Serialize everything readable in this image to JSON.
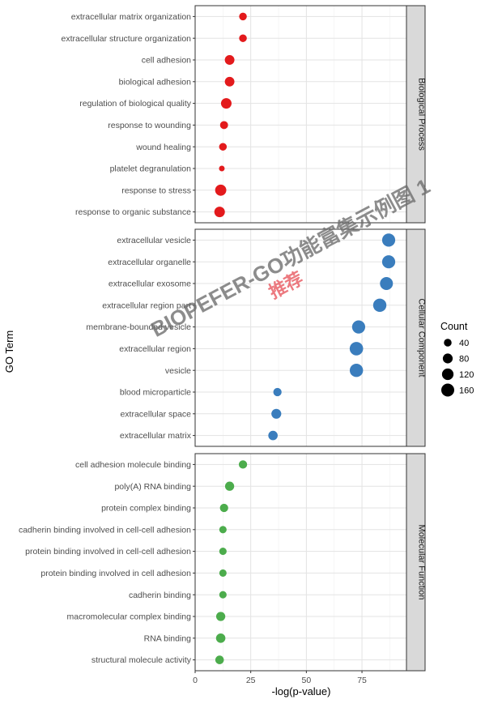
{
  "chart_data": {
    "type": "scatter",
    "xlabel": "-log(p-value)",
    "ylabel": "GO Term",
    "xlim": [
      0,
      95
    ],
    "xticks": [
      0,
      25,
      50,
      75
    ],
    "grid": true,
    "legend": {
      "title": "Count",
      "position": "right",
      "sizes": [
        40,
        80,
        120,
        160
      ]
    },
    "colors": {
      "Biological Process": "#e31a1c",
      "Cellular Component": "#3a7dbd",
      "Molecular Function": "#4cac4c"
    },
    "panels": [
      {
        "name": "Biological Process",
        "terms": [
          {
            "term": "extracellular matrix organization",
            "x": 21.5,
            "count": 40
          },
          {
            "term": "extracellular structure organization",
            "x": 21.5,
            "count": 40
          },
          {
            "term": "cell adhesion",
            "x": 15.5,
            "count": 75
          },
          {
            "term": "biological adhesion",
            "x": 15.5,
            "count": 75
          },
          {
            "term": "regulation of biological quality",
            "x": 14,
            "count": 95
          },
          {
            "term": "response to wounding",
            "x": 13,
            "count": 45
          },
          {
            "term": "wound healing",
            "x": 12.5,
            "count": 40
          },
          {
            "term": "platelet degranulation",
            "x": 12,
            "count": 15
          },
          {
            "term": "response to stress",
            "x": 11.5,
            "count": 110
          },
          {
            "term": "response to organic substance",
            "x": 11,
            "count": 95
          }
        ]
      },
      {
        "name": "Cellular Component",
        "terms": [
          {
            "term": "extracellular vesicle",
            "x": 87,
            "count": 165
          },
          {
            "term": "extracellular organelle",
            "x": 87,
            "count": 165
          },
          {
            "term": "extracellular exosome",
            "x": 86,
            "count": 160
          },
          {
            "term": "extracellular region part",
            "x": 83,
            "count": 170
          },
          {
            "term": "membrane-bounded vesicle",
            "x": 73.5,
            "count": 165
          },
          {
            "term": "extracellular region",
            "x": 72.5,
            "count": 175
          },
          {
            "term": "vesicle",
            "x": 72.5,
            "count": 170
          },
          {
            "term": "blood microparticle",
            "x": 37,
            "count": 50
          },
          {
            "term": "extracellular space",
            "x": 36.5,
            "count": 80
          },
          {
            "term": "extracellular matrix",
            "x": 35,
            "count": 70
          }
        ]
      },
      {
        "name": "Molecular Function",
        "terms": [
          {
            "term": "cell adhesion molecule binding",
            "x": 21.5,
            "count": 50
          },
          {
            "term": "poly(A) RNA binding",
            "x": 15.5,
            "count": 65
          },
          {
            "term": "protein complex binding",
            "x": 13,
            "count": 50
          },
          {
            "term": "cadherin binding involved in cell-cell adhesion",
            "x": 12.5,
            "count": 35
          },
          {
            "term": "protein binding involved in cell-cell adhesion",
            "x": 12.5,
            "count": 35
          },
          {
            "term": "protein binding involved in cell adhesion",
            "x": 12.5,
            "count": 35
          },
          {
            "term": "cadherin binding",
            "x": 12.5,
            "count": 35
          },
          {
            "term": "macromolecular complex binding",
            "x": 11.5,
            "count": 65
          },
          {
            "term": "RNA binding",
            "x": 11.5,
            "count": 70
          },
          {
            "term": "structural molecule activity",
            "x": 11,
            "count": 55
          }
        ]
      }
    ]
  },
  "watermark": {
    "line1": "BIOPEFER-GO功能富集示例图 1",
    "line2": "推荐"
  }
}
